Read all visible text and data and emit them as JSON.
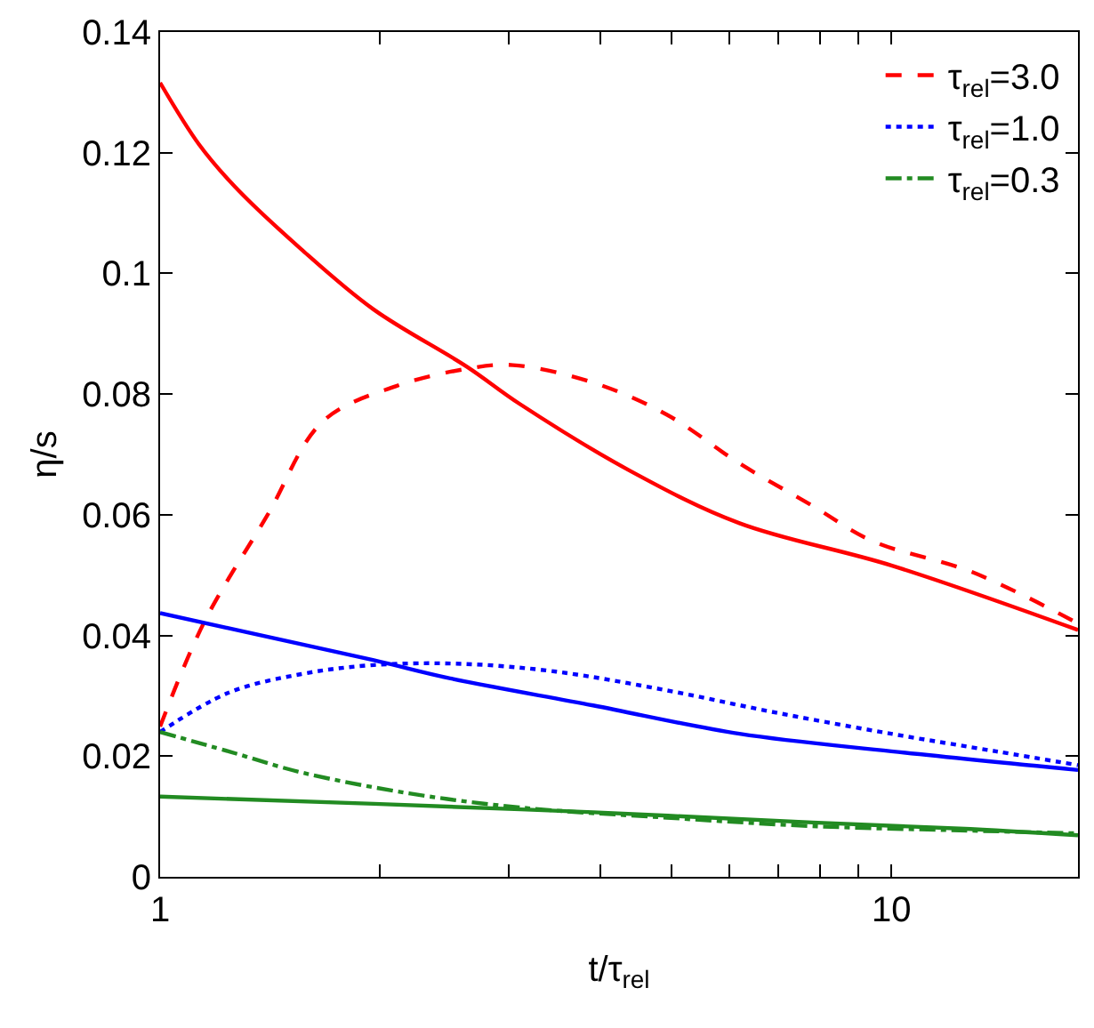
{
  "chart_data": {
    "type": "line",
    "xlabel": "t/τ$_{rel}$",
    "ylabel": "η/s",
    "log": "x",
    "legend": "top right",
    "xlim": [
      1,
      18
    ],
    "xticks": [
      1,
      {
        "value": 2,
        "label": null
      },
      {
        "value": 3,
        "label": null
      },
      {
        "value": 4,
        "label": null
      },
      {
        "value": 5,
        "label": null
      },
      {
        "value": 6,
        "label": null
      },
      {
        "value": 7,
        "label": null
      },
      {
        "value": 8,
        "label": null
      },
      {
        "value": 9,
        "label": null
      },
      10
    ],
    "ylim": [
      0,
      0.14
    ],
    "yticks": [
      0,
      0.02,
      0.04,
      0.06,
      0.08,
      0.1,
      0.12,
      0.14
    ],
    "series": [
      {
        "name": "τ$_{rel}$=3.0",
        "color": "#ff0000",
        "line_style": "dashed",
        "x": [
          1,
          1.15,
          1.4,
          1.67,
          2.1,
          2.63,
          3.04,
          3.91,
          4.93,
          6.2,
          7.8,
          9.4,
          12.9,
          18
        ],
        "values": [
          0.0249,
          0.0423,
          0.0598,
          0.0755,
          0.0813,
          0.0842,
          0.0848,
          0.0819,
          0.0766,
          0.0685,
          0.0615,
          0.0557,
          0.0505,
          0.042
        ]
      },
      {
        "name": "τ$_{rel}$=1.0",
        "color": "#0000ff",
        "line_style": "dotted",
        "x": [
          1,
          1.24,
          1.56,
          1.96,
          2.58,
          3.48,
          4.93,
          6.96,
          10,
          13.9,
          18
        ],
        "values": [
          0.024,
          0.0305,
          0.0336,
          0.0351,
          0.0353,
          0.034,
          0.0309,
          0.0272,
          0.0237,
          0.0208,
          0.0185
        ]
      },
      {
        "name": "τ$_{rel}$=0.3",
        "color": "#228b22",
        "line_style": "dashdot",
        "x": [
          1,
          1.24,
          1.56,
          2.2,
          3.1,
          4.93,
          7.8,
          12.4,
          18
        ],
        "values": [
          0.024,
          0.0208,
          0.0173,
          0.0138,
          0.0115,
          0.0098,
          0.0084,
          0.0077,
          0.0072
        ]
      },
      {
        "color": "#ff0000",
        "line_style": "solid",
        "x": [
          1,
          1.13,
          1.265,
          1.56,
          1.96,
          2.63,
          3.1,
          4.39,
          6.2,
          10,
          18
        ],
        "values": [
          0.1316,
          0.1214,
          0.1144,
          0.104,
          0.094,
          0.0845,
          0.0784,
          0.0673,
          0.0586,
          0.0516,
          0.0409
        ]
      },
      {
        "color": "#0000ff",
        "line_style": "solid",
        "x": [
          1,
          1.96,
          2.47,
          3.91,
          6.2,
          10,
          18
        ],
        "values": [
          0.0437,
          0.0359,
          0.033,
          0.0284,
          0.0237,
          0.0208,
          0.0177
        ]
      },
      {
        "color": "#228b22",
        "line_style": "solid",
        "x": [
          1,
          1.96,
          3.91,
          7.8,
          12.4,
          18
        ],
        "values": [
          0.0133,
          0.0121,
          0.0107,
          0.009,
          0.008,
          0.0069
        ]
      }
    ]
  }
}
